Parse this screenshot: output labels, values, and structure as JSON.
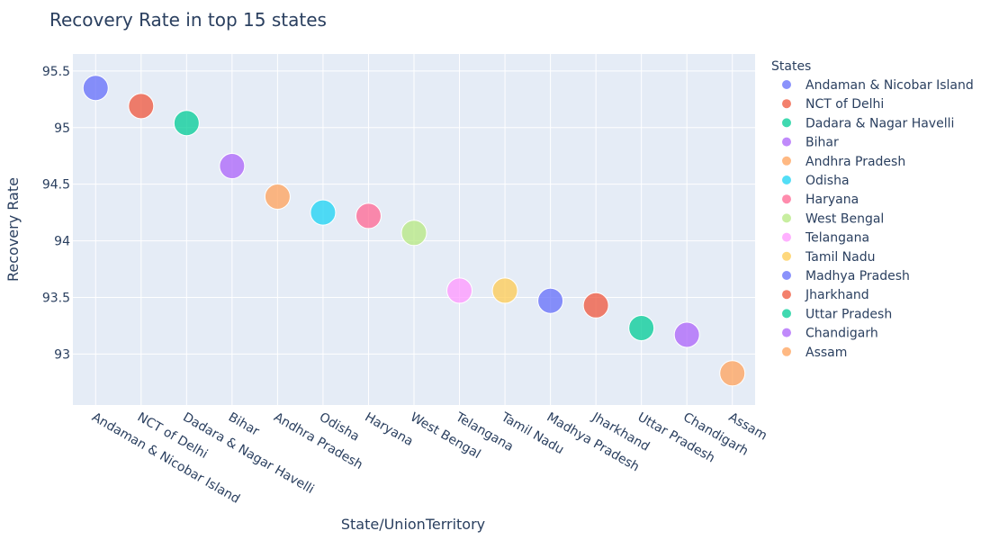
{
  "chart_data": {
    "type": "scatter",
    "title": "Recovery Rate in top 15 states",
    "xlabel": "State/UnionTerritory",
    "ylabel": "Recovery Rate",
    "ylim": [
      92.55,
      95.65
    ],
    "yticks": [
      93,
      93.5,
      94,
      94.5,
      95,
      95.5
    ],
    "ytick_labels": [
      "93",
      "93.5",
      "94",
      "94.5",
      "95",
      "95.5"
    ],
    "grid": true,
    "legend_title": "States",
    "legend_position": "right",
    "categories": [
      "Andaman & Nicobar Island",
      "NCT of Delhi",
      "Dadara & Nagar Havelli",
      "Bihar",
      "Andhra Pradesh",
      "Odisha",
      "Haryana",
      "West Bengal",
      "Telangana",
      "Tamil Nadu",
      "Madhya Pradesh",
      "Jharkhand",
      "Uttar Pradesh",
      "Chandigarh",
      "Assam"
    ],
    "series": [
      {
        "name": "Andaman & Nicobar Island",
        "x": "Andaman & Nicobar Island",
        "y": 95.35,
        "color": "#636efa"
      },
      {
        "name": "NCT of Delhi",
        "x": "NCT of Delhi",
        "y": 95.19,
        "color": "#ef553b"
      },
      {
        "name": "Dadara & Nagar Havelli",
        "x": "Dadara & Nagar Havelli",
        "y": 95.04,
        "color": "#00cc96"
      },
      {
        "name": "Bihar",
        "x": "Bihar",
        "y": 94.66,
        "color": "#ab63fa"
      },
      {
        "name": "Andhra Pradesh",
        "x": "Andhra Pradesh",
        "y": 94.39,
        "color": "#ffa15a"
      },
      {
        "name": "Odisha",
        "x": "Odisha",
        "y": 94.25,
        "color": "#19d3f3"
      },
      {
        "name": "Haryana",
        "x": "Haryana",
        "y": 94.22,
        "color": "#ff6692"
      },
      {
        "name": "West Bengal",
        "x": "West Bengal",
        "y": 94.07,
        "color": "#b6e880"
      },
      {
        "name": "Telangana",
        "x": "Telangana",
        "y": 93.56,
        "color": "#ff97ff"
      },
      {
        "name": "Tamil Nadu",
        "x": "Tamil Nadu",
        "y": 93.56,
        "color": "#fecb52"
      },
      {
        "name": "Madhya Pradesh",
        "x": "Madhya Pradesh",
        "y": 93.47,
        "color": "#636efa"
      },
      {
        "name": "Jharkhand",
        "x": "Jharkhand",
        "y": 93.43,
        "color": "#ef553b"
      },
      {
        "name": "Uttar Pradesh",
        "x": "Uttar Pradesh",
        "y": 93.23,
        "color": "#00cc96"
      },
      {
        "name": "Chandigarh",
        "x": "Chandigarh",
        "y": 93.17,
        "color": "#ab63fa"
      },
      {
        "name": "Assam",
        "x": "Assam",
        "y": 92.83,
        "color": "#ffa15a"
      }
    ]
  }
}
